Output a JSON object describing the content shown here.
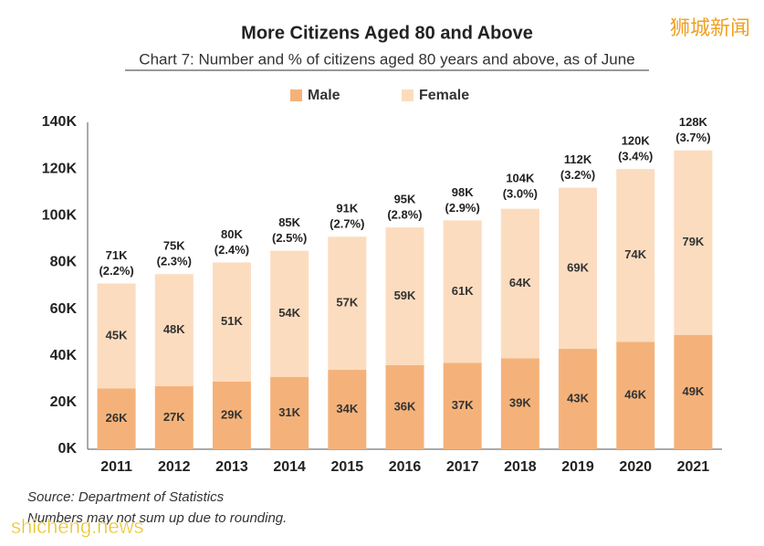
{
  "chart_data": {
    "type": "stacked-bar",
    "title": "More Citizens Aged 80 and Above",
    "subtitle": "Chart 7: Number and % of citizens aged 80 years and above, as of June",
    "categories": [
      "2011",
      "2012",
      "2013",
      "2014",
      "2015",
      "2016",
      "2017",
      "2018",
      "2019",
      "2020",
      "2021"
    ],
    "series": [
      {
        "name": "Male",
        "color": "#f4b27a",
        "values": [
          26000,
          27000,
          29000,
          31000,
          34000,
          36000,
          37000,
          39000,
          43000,
          46000,
          49000
        ],
        "value_labels": [
          "26K",
          "27K",
          "29K",
          "31K",
          "34K",
          "36K",
          "37K",
          "39K",
          "43K",
          "46K",
          "49K"
        ]
      },
      {
        "name": "Female",
        "color": "#fcdcbf",
        "values": [
          45000,
          48000,
          51000,
          54000,
          57000,
          59000,
          61000,
          64000,
          69000,
          74000,
          79000
        ],
        "value_labels": [
          "45K",
          "48K",
          "51K",
          "54K",
          "57K",
          "59K",
          "61K",
          "64K",
          "69K",
          "74K",
          "79K"
        ]
      }
    ],
    "totals": [
      71000,
      75000,
      80000,
      85000,
      91000,
      95000,
      98000,
      104000,
      112000,
      120000,
      128000
    ],
    "total_labels": [
      "71K",
      "75K",
      "80K",
      "85K",
      "91K",
      "95K",
      "98K",
      "104K",
      "112K",
      "120K",
      "128K"
    ],
    "shares": [
      2.2,
      2.3,
      2.4,
      2.5,
      2.7,
      2.8,
      2.9,
      3.0,
      3.2,
      3.4,
      3.7
    ],
    "share_labels": [
      "(2.2%)",
      "(2.3%)",
      "(2.4%)",
      "(2.5%)",
      "(2.7%)",
      "(2.8%)",
      "(2.9%)",
      "(3.0%)",
      "(3.2%)",
      "(3.4%)",
      "(3.7%)"
    ],
    "ylim": [
      0,
      140000
    ],
    "yticks": [
      {
        "value": 0,
        "label": "0K"
      },
      {
        "value": 20000,
        "label": "20K"
      },
      {
        "value": 40000,
        "label": "40K"
      },
      {
        "value": 60000,
        "label": "60K"
      },
      {
        "value": 80000,
        "label": "80K"
      },
      {
        "value": 100000,
        "label": "100K"
      },
      {
        "value": 120000,
        "label": "120K"
      },
      {
        "value": 140000,
        "label": "140K"
      }
    ],
    "legend": "top",
    "source": "Source: Department of Statistics",
    "note": "Numbers may not sum up due to rounding."
  },
  "watermarks": {
    "top": "狮城新闻",
    "bottom": "shicheng.news"
  }
}
